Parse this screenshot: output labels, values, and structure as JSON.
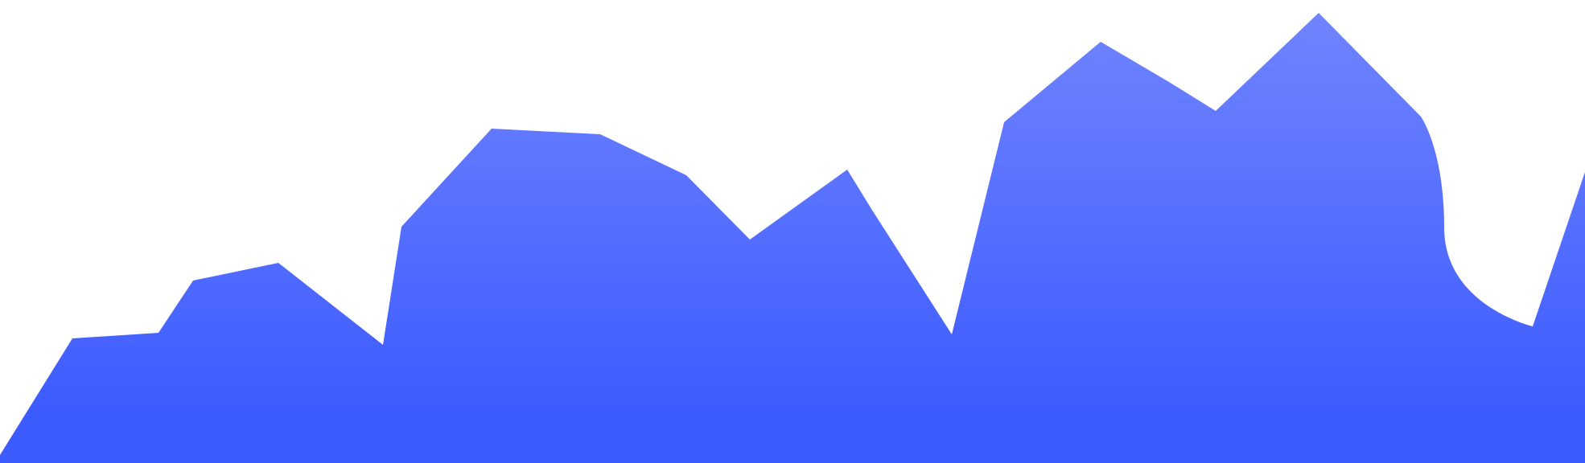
{
  "colors": {
    "background": "#ffffff",
    "gradient_top": "#7084ff",
    "gradient_bottom": "#3d5cff"
  }
}
